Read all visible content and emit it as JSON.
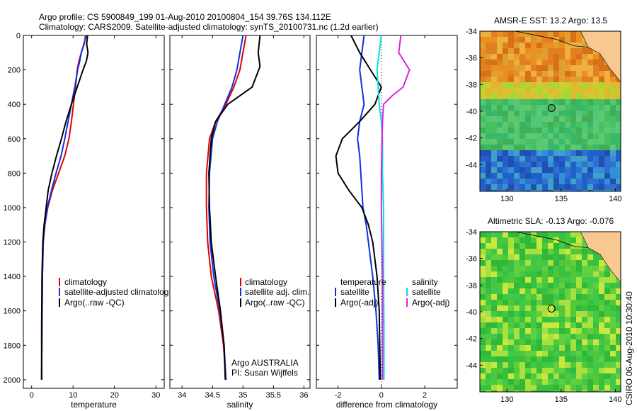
{
  "header": {
    "title_line1": "Argo profile: CS 5900849_199 01-Aug-2010 20100804_154 39.76S 134.112E",
    "title_line2": "Climatology: CARS2009. Satellite-adjusted climatology: synTS_20100731.nc (1.2d earlier)"
  },
  "colors": {
    "climatology": "#e00000",
    "satellite": "#1030e0",
    "argo": "#000000",
    "sal_satellite": "#00e0e0",
    "sal_argo": "#e020e0"
  },
  "chart_data": [
    {
      "id": "temperature",
      "type": "line",
      "xlabel": "temperature",
      "ylabel": "",
      "xlim": [
        -2,
        32
      ],
      "ylim": [
        2050,
        0
      ],
      "xticks": [
        0,
        10,
        20,
        30
      ],
      "yticks": [
        0,
        200,
        400,
        600,
        800,
        1000,
        1200,
        1400,
        1600,
        1800,
        2000
      ],
      "legend": [
        "climatology",
        "satellite-adjusted climatolog",
        "Argo(..raw -QC)"
      ],
      "series": [
        {
          "name": "climatology",
          "color": "#e00000",
          "x": [
            13,
            12.7,
            12.0,
            11.4,
            11.0,
            10.6,
            10.1,
            9.6,
            9.0,
            8.0,
            6.5,
            5.0,
            3.9,
            3.2,
            2.8,
            2.6,
            2.5,
            2.4
          ],
          "y": [
            0,
            50,
            100,
            150,
            200,
            300,
            400,
            500,
            600,
            700,
            800,
            900,
            1000,
            1100,
            1200,
            1400,
            1700,
            2000
          ]
        },
        {
          "name": "satellite-adjusted climatology",
          "color": "#1030e0",
          "x": [
            13.2,
            12.6,
            12.0,
            11.6,
            11.1,
            10.4,
            9.6,
            8.8,
            8.0,
            7.1,
            5.9,
            4.8,
            3.8,
            3.2,
            2.8,
            2.6,
            2.5,
            2.4
          ],
          "y": [
            0,
            50,
            100,
            150,
            200,
            300,
            400,
            500,
            600,
            700,
            800,
            900,
            1000,
            1100,
            1200,
            1400,
            1700,
            2000
          ]
        },
        {
          "name": "Argo",
          "color": "#000000",
          "x": [
            13.5,
            13.3,
            13.6,
            13.2,
            12.4,
            11.0,
            9.6,
            8.3,
            7.2,
            6.0,
            4.9,
            4.0,
            3.5,
            3.0,
            2.7,
            2.5,
            2.4,
            2.4
          ],
          "y": [
            0,
            50,
            100,
            150,
            200,
            300,
            400,
            500,
            600,
            700,
            800,
            900,
            1000,
            1100,
            1200,
            1400,
            1700,
            2000
          ]
        }
      ]
    },
    {
      "id": "salinity",
      "type": "line",
      "xlabel": "salinity",
      "ylabel": "",
      "xlim": [
        33.8,
        36.1
      ],
      "ylim": [
        2050,
        0
      ],
      "xticks": [
        34,
        34.5,
        35,
        35.5,
        36
      ],
      "legend": [
        "climatology",
        "satellite adj. clim.",
        "Argo(..raw -QC)"
      ],
      "annotations": [
        "Argo AUSTRALIA",
        "PI: Susan Wijffels"
      ],
      "series": [
        {
          "name": "climatology",
          "color": "#e00000",
          "x": [
            35.05,
            35.0,
            34.95,
            34.85,
            34.72,
            34.55,
            34.45,
            34.4,
            34.4,
            34.42,
            34.48,
            34.6,
            34.68,
            34.72
          ],
          "y": [
            0,
            100,
            200,
            300,
            400,
            500,
            600,
            800,
            1000,
            1200,
            1400,
            1600,
            1800,
            2000
          ]
        },
        {
          "name": "satellite adj. clim.",
          "color": "#1030e0",
          "x": [
            35.0,
            34.95,
            34.9,
            34.82,
            34.7,
            34.58,
            34.5,
            34.45,
            34.44,
            34.46,
            34.52,
            34.62,
            34.69,
            34.72
          ],
          "y": [
            0,
            100,
            200,
            300,
            400,
            500,
            600,
            800,
            1000,
            1200,
            1400,
            1600,
            1800,
            2000
          ]
        },
        {
          "name": "Argo",
          "color": "#000000",
          "x": [
            35.28,
            35.25,
            35.28,
            35.15,
            34.75,
            34.55,
            34.48,
            34.44,
            34.45,
            34.48,
            34.55,
            34.63,
            34.69,
            34.71
          ],
          "y": [
            0,
            100,
            180,
            300,
            400,
            500,
            600,
            800,
            1000,
            1200,
            1400,
            1600,
            1800,
            2000
          ]
        }
      ]
    },
    {
      "id": "difference",
      "type": "line",
      "xlabel": "difference from climatology",
      "ylabel": "",
      "xlim": [
        -3,
        3.5
      ],
      "ylim": [
        2050,
        0
      ],
      "xticks": [
        -2,
        0,
        2
      ],
      "legend_temperature": [
        "temperature",
        "satellite",
        "Argo(-adj)"
      ],
      "legend_salinity": [
        "salinity",
        "satellite",
        "Argo(-adj)"
      ],
      "series": [
        {
          "name": "temperature satellite",
          "color": "#1030e0",
          "x": [
            -0.8,
            -0.9,
            -1.0,
            -0.9,
            -0.8,
            -1.0,
            -1.1,
            -1.0,
            -0.95,
            -0.9,
            -0.85,
            -0.7,
            -0.6,
            -0.4,
            -0.25,
            -0.15,
            -0.1
          ],
          "y": [
            0,
            100,
            200,
            300,
            400,
            500,
            600,
            700,
            800,
            900,
            1000,
            1100,
            1200,
            1400,
            1600,
            1800,
            2000
          ]
        },
        {
          "name": "temperature Argo(-adj)",
          "color": "#000000",
          "x": [
            -1.4,
            -1.0,
            -0.5,
            0.0,
            -0.3,
            -1.0,
            -1.8,
            -2.1,
            -2.0,
            -1.5,
            -0.9,
            -0.6,
            -0.4,
            -0.2,
            -0.1,
            -0.05
          ],
          "y": [
            0,
            100,
            200,
            300,
            400,
            500,
            600,
            700,
            800,
            900,
            1000,
            1100,
            1200,
            1400,
            1600,
            2000
          ]
        },
        {
          "name": "salinity satellite",
          "color": "#00e0e0",
          "x": [
            0.0,
            -0.1,
            -0.2,
            -0.15,
            -0.1,
            0.0,
            0.05,
            0.05,
            0.1,
            0.1,
            0.1,
            0.12,
            0.12
          ],
          "y": [
            0,
            100,
            200,
            300,
            400,
            500,
            600,
            800,
            1000,
            1200,
            1400,
            1700,
            2000
          ]
        },
        {
          "name": "salinity Argo(-adj)",
          "color": "#e020e0",
          "x": [
            0.9,
            0.8,
            1.3,
            1.0,
            0.5,
            0.1,
            0.05,
            0.0,
            0.0,
            0.05,
            0.05,
            0.05
          ],
          "y": [
            0,
            100,
            200,
            300,
            350,
            400,
            500,
            800,
            1000,
            1400,
            1700,
            2000
          ]
        }
      ]
    },
    {
      "id": "sst_map",
      "type": "heatmap",
      "title": "AMSR-E SST: 13.2 Argo: 13.5",
      "xticks": [
        130,
        135,
        140
      ],
      "yticks": [
        -34,
        -36,
        -38,
        -40,
        -42,
        -44
      ],
      "xlim": [
        127.5,
        140.5
      ],
      "ylim": [
        -46,
        -34
      ],
      "marker": {
        "lon": 134.112,
        "lat": -39.76
      }
    },
    {
      "id": "sla_map",
      "type": "heatmap",
      "title": "Altimetric SLA: -0.13 Argo: -0.076",
      "xticks": [
        130,
        135,
        140
      ],
      "yticks": [
        -34,
        -36,
        -38,
        -40,
        -42,
        -44
      ],
      "xlim": [
        127.5,
        140.5
      ],
      "ylim": [
        -46,
        -34
      ],
      "marker": {
        "lon": 134.112,
        "lat": -39.76
      }
    }
  ],
  "side_label": "CSIRO 06-Aug-2010 10:30:40"
}
